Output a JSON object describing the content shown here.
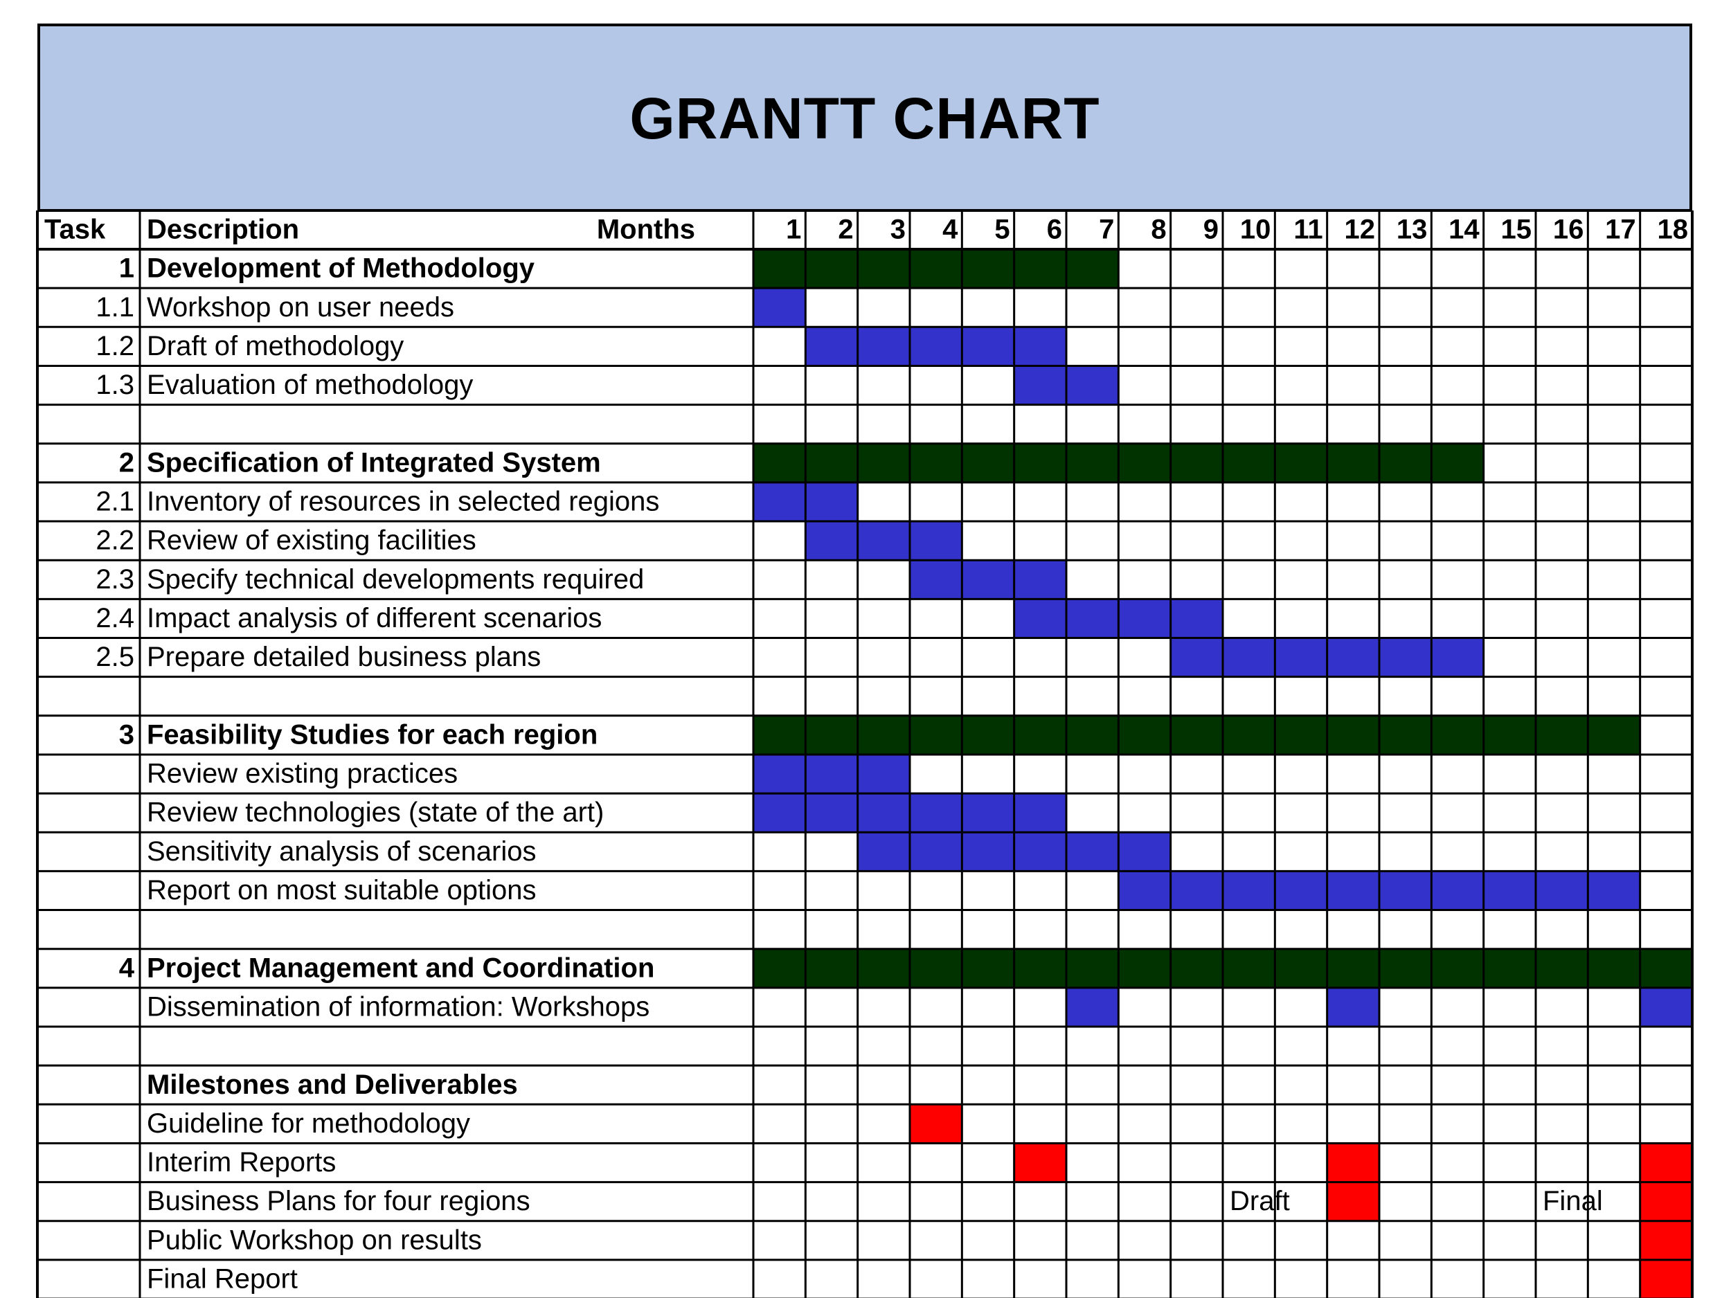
{
  "chart_data": {
    "type": "table",
    "title": "GRANTT CHART",
    "headers": {
      "task": "Task",
      "description": "Description",
      "months": "Months"
    },
    "months": [
      "1",
      "2",
      "3",
      "4",
      "5",
      "6",
      "7",
      "8",
      "9",
      "10",
      "11",
      "12",
      "13",
      "14",
      "15",
      "16",
      "17",
      "18"
    ],
    "rows": [
      {
        "task": "1",
        "description": "Development of Methodology",
        "bold": true,
        "bars": [
          [
            1,
            7
          ]
        ],
        "kind": "summary"
      },
      {
        "task": "1.1",
        "description": "Workshop on user needs",
        "bars": [
          [
            1,
            1
          ]
        ],
        "kind": "task"
      },
      {
        "task": "1.2",
        "description": "Draft of methodology",
        "bars": [
          [
            2,
            6
          ]
        ],
        "kind": "task"
      },
      {
        "task": "1.3",
        "description": "Evaluation of methodology",
        "bars": [
          [
            6,
            7
          ]
        ],
        "kind": "task"
      },
      {
        "task": "",
        "description": "",
        "bars": []
      },
      {
        "task": "2",
        "description": "Specification of Integrated System",
        "bold": true,
        "bars": [
          [
            1,
            14
          ]
        ],
        "kind": "summary"
      },
      {
        "task": "2.1",
        "description": "Inventory of resources in selected regions",
        "bars": [
          [
            1,
            2
          ]
        ],
        "kind": "task"
      },
      {
        "task": "2.2",
        "description": "Review of existing facilities",
        "bars": [
          [
            2,
            4
          ]
        ],
        "kind": "task"
      },
      {
        "task": "2.3",
        "description": "Specify technical developments required",
        "bars": [
          [
            4,
            6
          ]
        ],
        "kind": "task"
      },
      {
        "task": "2.4",
        "description": "Impact analysis of different scenarios",
        "bars": [
          [
            6,
            9
          ]
        ],
        "kind": "task"
      },
      {
        "task": "2.5",
        "description": "Prepare detailed business plans",
        "bars": [
          [
            9,
            14
          ]
        ],
        "kind": "task"
      },
      {
        "task": "",
        "description": "",
        "bars": []
      },
      {
        "task": "3",
        "description": "Feasibility Studies for each region",
        "bold": true,
        "bars": [
          [
            1,
            17
          ]
        ],
        "kind": "summary"
      },
      {
        "task": "",
        "description": "Review existing practices",
        "bars": [
          [
            1,
            3
          ]
        ],
        "kind": "task"
      },
      {
        "task": "",
        "description": "Review technologies (state of the art)",
        "bars": [
          [
            1,
            6
          ]
        ],
        "kind": "task"
      },
      {
        "task": "",
        "description": "Sensitivity analysis of scenarios",
        "bars": [
          [
            3,
            8
          ]
        ],
        "kind": "task"
      },
      {
        "task": "",
        "description": "Report on most suitable options",
        "bars": [
          [
            8,
            17
          ]
        ],
        "kind": "task"
      },
      {
        "task": "",
        "description": "",
        "bars": []
      },
      {
        "task": "4",
        "description": "Project Management and Coordination",
        "bold": true,
        "bars": [
          [
            1,
            18
          ]
        ],
        "kind": "summary"
      },
      {
        "task": "",
        "description": "Dissemination of information: Workshops",
        "bars": [
          [
            7,
            7
          ],
          [
            12,
            12
          ],
          [
            18,
            18
          ]
        ],
        "kind": "task"
      },
      {
        "task": "",
        "description": "",
        "bars": []
      },
      {
        "task": "",
        "description": "Milestones and Deliverables",
        "bold": true,
        "bars": []
      },
      {
        "task": "",
        "description": "Guideline for methodology",
        "bars": [
          [
            4,
            4
          ]
        ],
        "kind": "milestone"
      },
      {
        "task": "",
        "description": "Interim Reports",
        "bars": [
          [
            6,
            6
          ],
          [
            12,
            12
          ],
          [
            18,
            18
          ]
        ],
        "kind": "milestone"
      },
      {
        "task": "",
        "description": "Business Plans for four regions",
        "bars": [
          [
            12,
            12
          ],
          [
            18,
            18
          ]
        ],
        "kind": "milestone",
        "notes": [
          {
            "month": 10,
            "text": "Draft"
          },
          {
            "month": 16,
            "text": "Final"
          }
        ]
      },
      {
        "task": "",
        "description": "Public Workshop on results",
        "bars": [
          [
            18,
            18
          ]
        ],
        "kind": "milestone"
      },
      {
        "task": "",
        "description": "Final Report",
        "bars": [
          [
            18,
            18
          ]
        ],
        "kind": "milestone"
      }
    ],
    "colors": {
      "summary": "#003300",
      "task": "#3333cc",
      "milestone": "#ff0000",
      "header": "#b4c7e7"
    }
  }
}
